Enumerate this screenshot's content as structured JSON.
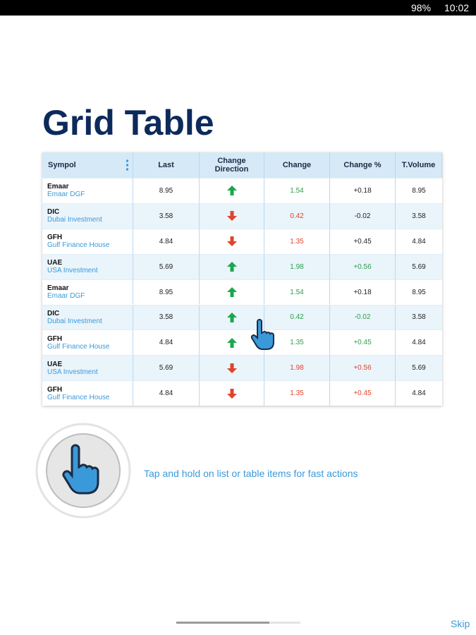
{
  "status_bar": {
    "battery": "98%",
    "time": "10:02"
  },
  "title": "Grid Table",
  "table": {
    "headers": [
      "Sympol",
      "Last",
      "Change Direction",
      "Change",
      "Change %",
      "T.Volume"
    ],
    "rows": [
      {
        "symbol": "Emaar",
        "name": "Emaar DGF",
        "last": "8.95",
        "direction": "up",
        "change": "1.54",
        "change_color": "#2e9e4f",
        "change_pct": "+0.18",
        "change_pct_color": "#222222",
        "volume": "8.95"
      },
      {
        "symbol": "DIC",
        "name": "Dubai Investment",
        "last": "3.58",
        "direction": "down",
        "change": "0.42",
        "change_color": "#e0442b",
        "change_pct": "-0.02",
        "change_pct_color": "#222222",
        "volume": "3.58"
      },
      {
        "symbol": "GFH",
        "name": "Gulf Finance House",
        "last": "4.84",
        "direction": "down",
        "change": "1.35",
        "change_color": "#e0442b",
        "change_pct": "+0.45",
        "change_pct_color": "#222222",
        "volume": "4.84"
      },
      {
        "symbol": "UAE",
        "name": "USA Investment",
        "last": "5.69",
        "direction": "up",
        "change": "1.98",
        "change_color": "#2e9e4f",
        "change_pct": "+0.56",
        "change_pct_color": "#2e9e4f",
        "volume": "5.69"
      },
      {
        "symbol": "Emaar",
        "name": "Emaar DGF",
        "last": "8.95",
        "direction": "up",
        "change": "1.54",
        "change_color": "#2e9e4f",
        "change_pct": "+0.18",
        "change_pct_color": "#222222",
        "volume": "8.95"
      },
      {
        "symbol": "DIC",
        "name": "Dubai Investment",
        "last": "3.58",
        "direction": "up",
        "change": "0.42",
        "change_color": "#2e9e4f",
        "change_pct": "-0.02",
        "change_pct_color": "#2e9e4f",
        "volume": "3.58"
      },
      {
        "symbol": "GFH",
        "name": "Gulf Finance House",
        "last": "4.84",
        "direction": "up",
        "change": "1.35",
        "change_color": "#2e9e4f",
        "change_pct": "+0.45",
        "change_pct_color": "#2e9e4f",
        "volume": "4.84"
      },
      {
        "symbol": "UAE",
        "name": "USA Investment",
        "last": "5.69",
        "direction": "down",
        "change": "1.98",
        "change_color": "#e0442b",
        "change_pct": "+0.56",
        "change_pct_color": "#e0442b",
        "volume": "5.69"
      },
      {
        "symbol": "GFH",
        "name": "Gulf Finance House",
        "last": "4.84",
        "direction": "down",
        "change": "1.35",
        "change_color": "#e0442b",
        "change_pct": "+0.45",
        "change_pct_color": "#e0442b",
        "volume": "4.84"
      }
    ]
  },
  "hint": "Tap and hold on list or table items for fast actions",
  "skip": "Skip"
}
